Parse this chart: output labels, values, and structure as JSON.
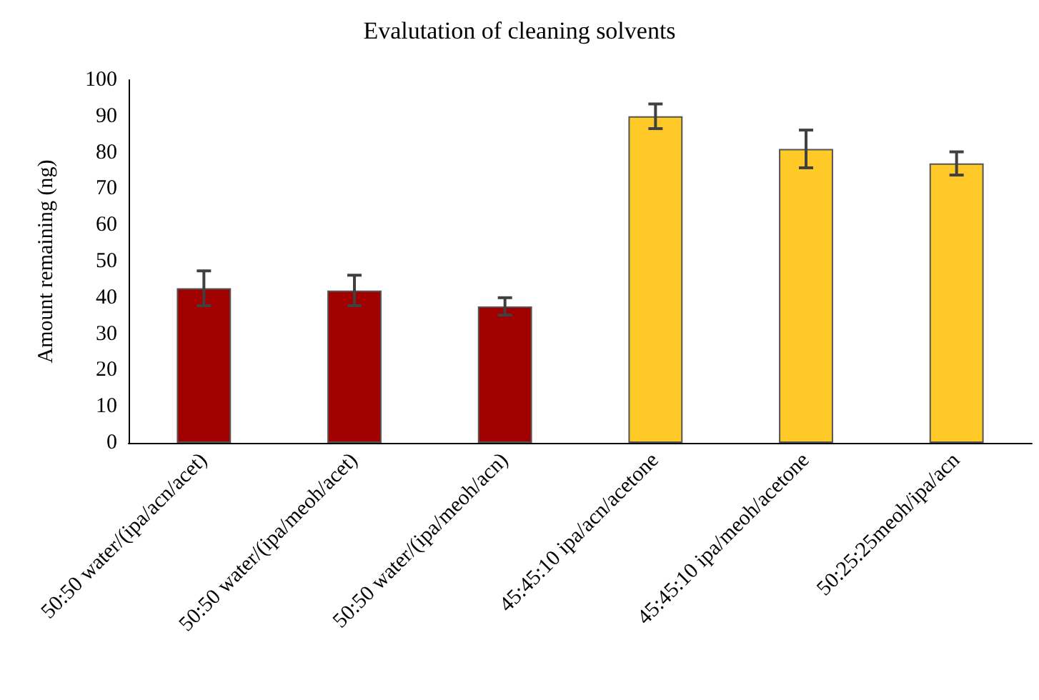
{
  "chart_data": {
    "type": "bar",
    "title": "Evalutation of cleaning solvents",
    "ylabel": "Amount remaining (ng)",
    "categories": [
      "50:50 water/(ipa/acn/acet)",
      "50:50 water/(ipa/meoh/acet)",
      "50:50 water/(ipa/meoh/acn)",
      "45:45:10 ipa/acn/acetone",
      "45:45:10 ipa/meoh/acetone",
      "50:25:25meoh/ipa/acn"
    ],
    "values": [
      42.6,
      42,
      37.6,
      90,
      81,
      77
    ],
    "errors": [
      4.8,
      4.2,
      2.4,
      3.4,
      5.2,
      3.2
    ],
    "colors": [
      "#a00000",
      "#a00000",
      "#a00000",
      "#ffca28",
      "#ffca28",
      "#ffca28"
    ],
    "ylim": [
      0,
      100
    ],
    "yticks": [
      0,
      10,
      20,
      30,
      40,
      50,
      60,
      70,
      80,
      90,
      100
    ],
    "grid": false
  }
}
